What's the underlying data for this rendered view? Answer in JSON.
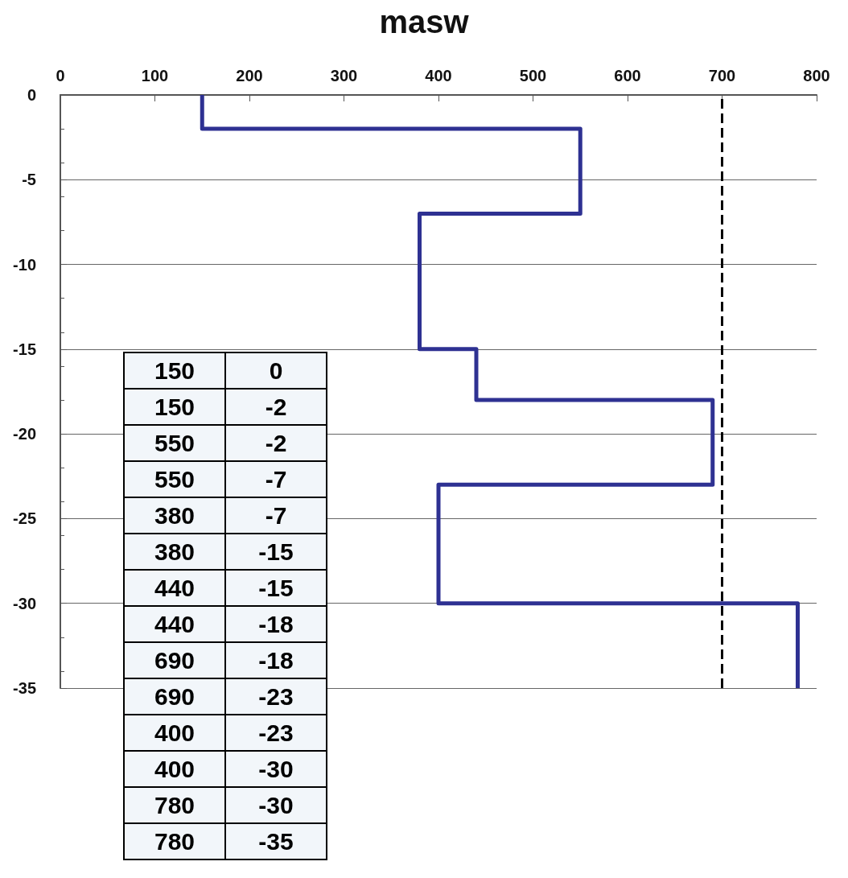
{
  "chart_data": {
    "type": "line",
    "title": "masw",
    "series": [
      {
        "color": "#2e3192",
        "x": [
          150,
          150,
          550,
          550,
          380,
          380,
          440,
          440,
          690,
          690,
          400,
          400,
          780,
          780
        ],
        "values": [
          0,
          -2,
          -2,
          -7,
          -7,
          -15,
          -15,
          -18,
          -18,
          -23,
          -23,
          -30,
          -30,
          -35
        ]
      }
    ],
    "xlim": [
      0,
      800
    ],
    "xticks": [
      0,
      100,
      200,
      300,
      400,
      500,
      600,
      700,
      800
    ],
    "ylim": [
      -35,
      0
    ],
    "yticks": [
      0,
      -5,
      -10,
      -15,
      -20,
      -25,
      -30,
      -35
    ],
    "grid": "y",
    "marker": "none",
    "line_style": "solid",
    "annotations": [
      "150",
      "0",
      "150",
      "-2",
      "550",
      "-2",
      "550",
      "-7",
      "380",
      "-7",
      "380",
      "-15",
      "440",
      "-15",
      "440",
      "-18",
      "690",
      "-18",
      "690",
      "-23",
      "400",
      "-23",
      "400",
      "-30",
      "780",
      "-30",
      "780",
      "-35"
    ],
    "ref_lines": [
      {
        "axis": "x",
        "value": 700,
        "color": "#000000",
        "line_style": "dashed"
      }
    ]
  }
}
